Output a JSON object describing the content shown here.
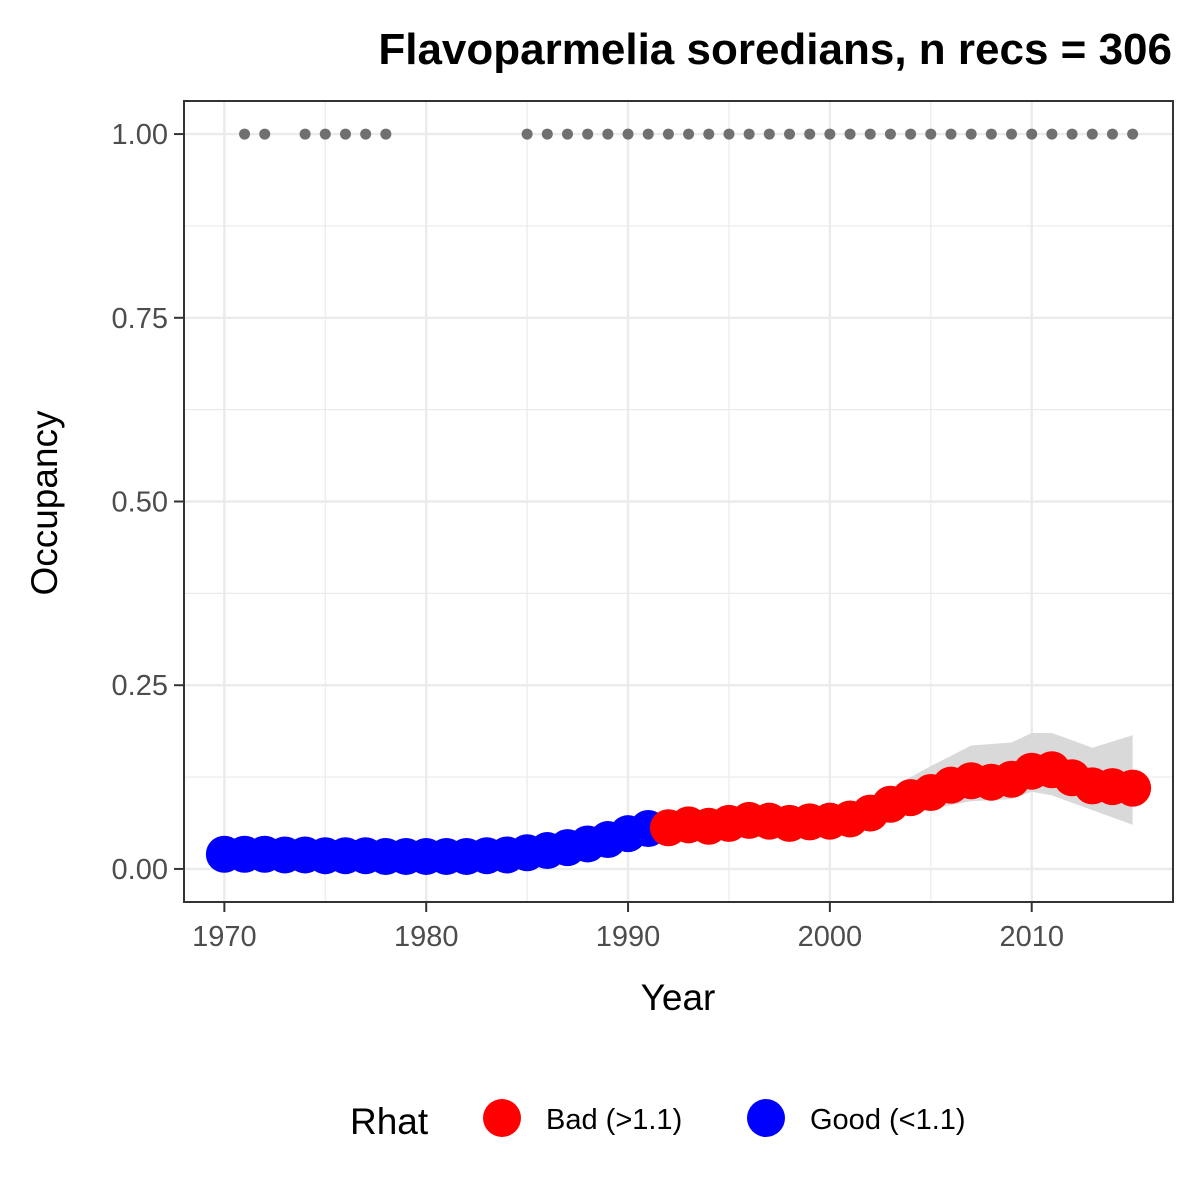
{
  "chart_data": {
    "type": "line",
    "title": "Flavoparmelia soredians, n recs = 306",
    "xlabel": "Year",
    "ylabel": "Occupancy",
    "xlim": [
      1968,
      2017
    ],
    "ylim": [
      -0.045,
      1.045
    ],
    "x_ticks": [
      1970,
      1980,
      1990,
      2000,
      2010
    ],
    "x_tick_labels": [
      "1970",
      "1980",
      "1990",
      "2000",
      "2010"
    ],
    "y_ticks": [
      0.0,
      0.25,
      0.5,
      0.75,
      1.0
    ],
    "y_tick_labels": [
      "0.00",
      "0.25",
      "0.50",
      "0.75",
      "1.00"
    ],
    "grid": true,
    "legend": {
      "title": "Rhat",
      "position": "bottom",
      "entries": [
        {
          "label": "Bad (>1.1)",
          "color": "#ff0000"
        },
        {
          "label": "Good (<1.1)",
          "color": "#0000ff"
        }
      ]
    },
    "colors": {
      "bad": "#ff0000",
      "good": "#0000ff",
      "ribbon": "#d9d9d9",
      "records": "#707070"
    },
    "series": [
      {
        "rhat": "Good (<1.1)",
        "x": [
          1970,
          1971,
          1972,
          1973,
          1974,
          1975,
          1976,
          1977,
          1978,
          1979,
          1980,
          1981,
          1982,
          1983,
          1984,
          1985,
          1986,
          1987,
          1988,
          1989,
          1990,
          1991
        ],
        "y": [
          0.02,
          0.02,
          0.02,
          0.019,
          0.019,
          0.018,
          0.018,
          0.018,
          0.017,
          0.017,
          0.017,
          0.017,
          0.017,
          0.018,
          0.019,
          0.022,
          0.025,
          0.029,
          0.034,
          0.04,
          0.048,
          0.055
        ]
      },
      {
        "rhat": "Bad (>1.1)",
        "x": [
          1992,
          1993,
          1994,
          1995,
          1996,
          1997,
          1998,
          1999,
          2000,
          2001,
          2002,
          2003,
          2004,
          2005,
          2006,
          2007,
          2008,
          2009,
          2010,
          2011,
          2012,
          2013,
          2014,
          2015
        ],
        "y": [
          0.056,
          0.06,
          0.058,
          0.062,
          0.066,
          0.065,
          0.062,
          0.064,
          0.065,
          0.068,
          0.076,
          0.088,
          0.097,
          0.104,
          0.114,
          0.12,
          0.118,
          0.122,
          0.133,
          0.135,
          0.124,
          0.113,
          0.112,
          0.11
        ]
      }
    ],
    "uncertainty_ribbon": {
      "x": [
        1991,
        1993,
        1995,
        1997,
        1999,
        2001,
        2003,
        2005,
        2007,
        2009,
        2010,
        2011,
        2012,
        2013,
        2015
      ],
      "lower": [
        0.04,
        0.052,
        0.054,
        0.054,
        0.052,
        0.055,
        0.068,
        0.082,
        0.092,
        0.095,
        0.105,
        0.1,
        0.09,
        0.08,
        0.06
      ],
      "upper": [
        0.07,
        0.072,
        0.074,
        0.078,
        0.078,
        0.082,
        0.11,
        0.14,
        0.168,
        0.172,
        0.185,
        0.185,
        0.175,
        0.165,
        0.182
      ]
    },
    "records": {
      "y": 1.0,
      "years": [
        1971,
        1972,
        1974,
        1975,
        1976,
        1977,
        1978,
        1985,
        1986,
        1987,
        1988,
        1989,
        1990,
        1991,
        1992,
        1993,
        1994,
        1995,
        1996,
        1997,
        1998,
        1999,
        2000,
        2001,
        2002,
        2003,
        2004,
        2005,
        2006,
        2007,
        2008,
        2009,
        2010,
        2011,
        2012,
        2013,
        2014,
        2015
      ]
    }
  }
}
